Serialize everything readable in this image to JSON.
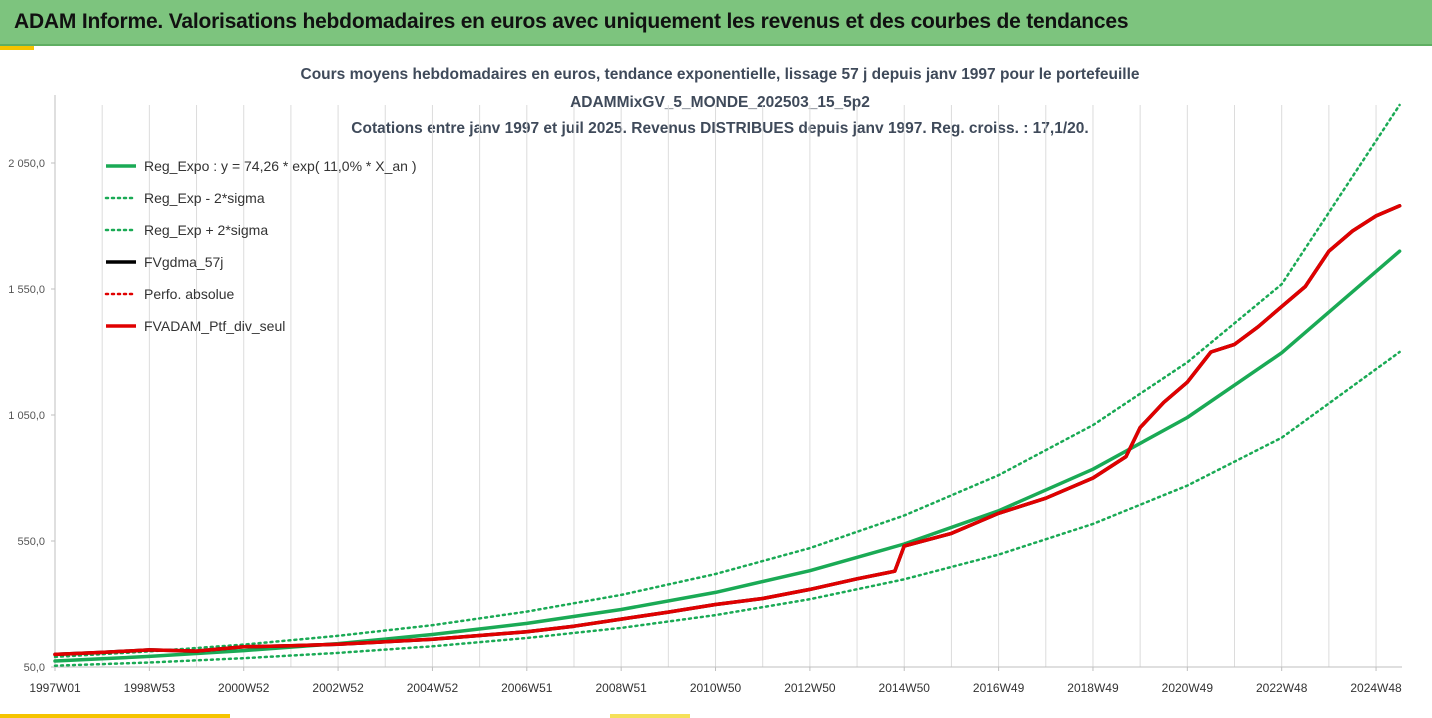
{
  "header": {
    "title": "ADAM Informe. Valorisations hebdomadaires en euros avec uniquement les revenus et des courbes de tendances"
  },
  "colors": {
    "banner": "#7dc47e",
    "accent": "#f5c400",
    "trend": "#1aaa55",
    "fv_black": "#000000",
    "perf_red": "#e00000"
  },
  "chart_data": {
    "type": "line",
    "title": [
      "Cours moyens hebdomadaires  en euros, tendance exponentielle, lissage 57 j depuis janv 1997 pour le portefeuille",
      "ADAMMixGV_5_MONDE_202503_15_5p2",
      "Cotations  entre janv 1997 et juil 2025. Revenus DISTRIBUES depuis janv 1997. Reg. croiss. : 17,1/20."
    ],
    "xlabel": "",
    "ylabel": "",
    "x_ticks": [
      "1997W01",
      "1998W53",
      "2000W52",
      "2002W52",
      "2004W52",
      "2006W51",
      "2008W51",
      "2010W50",
      "2012W50",
      "2014W50",
      "2016W49",
      "2018W49",
      "2020W49",
      "2022W48",
      "2024W48"
    ],
    "x_tick_years": [
      1997.0,
      1999.0,
      2001.0,
      2003.0,
      2005.0,
      2007.0,
      2009.0,
      2011.0,
      2013.0,
      2015.0,
      2017.0,
      2019.0,
      2021.0,
      2023.0,
      2025.0
    ],
    "x_range": [
      1997.0,
      2025.55
    ],
    "y_ticks": [
      "50,0",
      "550,0",
      "1 050,0",
      "1 550,0",
      "2 050,0"
    ],
    "y_tick_values": [
      50,
      550,
      1050,
      1550,
      2050
    ],
    "ylim": [
      50,
      2050
    ],
    "grid": "vertical",
    "legend_position": "top-left",
    "legend": [
      "Reg_Expo : y = 74,26 * exp( 11,0% *  X_an )",
      "Reg_Exp - 2*sigma",
      "Reg_Exp + 2*sigma",
      "FVgdma_57j",
      "Perfo. absolue",
      "FVADAM_Ptf_div_seul"
    ],
    "series": [
      {
        "name": "Reg_Expo : y = 74,26 * exp( 11,0% *  X_an )",
        "style": "solid",
        "color": "#1aaa55",
        "x": [
          1997.0,
          1999.0,
          2001.0,
          2003.0,
          2005.0,
          2007.0,
          2009.0,
          2011.0,
          2013.0,
          2015.0,
          2017.0,
          2019.0,
          2021.0,
          2023.0,
          2025.5
        ],
        "values": [
          74,
          92,
          115,
          143,
          179,
          223,
          278,
          346,
          432,
          538,
          670,
          835,
          1040,
          1297,
          1700
        ]
      },
      {
        "name": "Reg_Exp - 2*sigma",
        "style": "dotted",
        "color": "#1aaa55",
        "x": [
          1997.0,
          1999.0,
          2001.0,
          2003.0,
          2005.0,
          2007.0,
          2009.0,
          2011.0,
          2013.0,
          2015.0,
          2017.0,
          2019.0,
          2021.0,
          2023.0,
          2025.5
        ],
        "values": [
          55,
          68,
          85,
          106,
          132,
          165,
          205,
          256,
          319,
          398,
          496,
          618,
          770,
          960,
          1300
        ]
      },
      {
        "name": "Reg_Exp + 2*sigma",
        "style": "dotted",
        "color": "#1aaa55",
        "x": [
          1997.0,
          1999.0,
          2001.0,
          2003.0,
          2005.0,
          2007.0,
          2009.0,
          2011.0,
          2013.0,
          2015.0,
          2017.0,
          2019.0,
          2021.0,
          2023.0,
          2025.5
        ],
        "values": [
          90,
          112,
          139,
          174,
          216,
          270,
          336,
          419,
          522,
          651,
          811,
          1010,
          1259,
          1569,
          2280
        ]
      },
      {
        "name": "FVgdma_57j",
        "style": "solid",
        "color": "#000000",
        "x": [
          1997.0,
          1998.0,
          1999.0,
          2000.0,
          2001.0,
          2002.0,
          2003.0,
          2004.0,
          2005.0,
          2006.0,
          2007.0,
          2008.0,
          2009.0,
          2010.0,
          2011.0,
          2012.0,
          2013.0,
          2014.0,
          2014.8,
          2015.0,
          2016.0,
          2017.0,
          2018.0,
          2019.0,
          2019.7,
          2020.0,
          2020.5,
          2021.0,
          2021.5,
          2022.0,
          2022.5,
          2023.0,
          2023.5,
          2024.0,
          2024.5,
          2025.0,
          2025.5
        ],
        "values": [
          100,
          108,
          118,
          113,
          130,
          134,
          140,
          150,
          160,
          175,
          190,
          212,
          240,
          268,
          298,
          322,
          358,
          400,
          430,
          530,
          580,
          660,
          720,
          800,
          885,
          1000,
          1100,
          1180,
          1300,
          1330,
          1400,
          1480,
          1560,
          1700,
          1780,
          1840,
          1880
        ]
      },
      {
        "name": "Perfo. absolue",
        "style": "dotted",
        "color": "#e00000",
        "x": [
          1997.0,
          1998.0,
          1999.0,
          2000.0,
          2001.0,
          2002.0,
          2003.0,
          2004.0,
          2005.0,
          2006.0,
          2007.0,
          2008.0,
          2009.0,
          2010.0,
          2011.0,
          2012.0,
          2013.0,
          2014.0,
          2014.8,
          2015.0,
          2016.0,
          2017.0,
          2018.0,
          2019.0,
          2019.7,
          2020.0,
          2020.5,
          2021.0,
          2021.5,
          2022.0,
          2022.5,
          2023.0,
          2023.5,
          2024.0,
          2024.5,
          2025.0,
          2025.5
        ],
        "values": [
          100,
          108,
          118,
          113,
          130,
          134,
          140,
          150,
          160,
          175,
          190,
          212,
          240,
          268,
          298,
          322,
          358,
          400,
          430,
          530,
          580,
          660,
          720,
          800,
          885,
          1000,
          1100,
          1180,
          1300,
          1330,
          1400,
          1480,
          1560,
          1700,
          1780,
          1840,
          1880
        ]
      },
      {
        "name": "FVADAM_Ptf_div_seul",
        "style": "solid",
        "color": "#e00000",
        "x": [
          1997.0,
          1998.0,
          1999.0,
          2000.0,
          2001.0,
          2002.0,
          2003.0,
          2004.0,
          2005.0,
          2006.0,
          2007.0,
          2008.0,
          2009.0,
          2010.0,
          2011.0,
          2012.0,
          2013.0,
          2014.0,
          2014.8,
          2015.0,
          2016.0,
          2017.0,
          2018.0,
          2019.0,
          2019.7,
          2020.0,
          2020.5,
          2021.0,
          2021.5,
          2022.0,
          2022.5,
          2023.0,
          2023.5,
          2024.0,
          2024.5,
          2025.0,
          2025.5
        ],
        "values": [
          100,
          108,
          118,
          113,
          130,
          134,
          140,
          150,
          160,
          175,
          190,
          212,
          240,
          268,
          298,
          322,
          358,
          400,
          430,
          530,
          580,
          660,
          720,
          800,
          885,
          1000,
          1100,
          1180,
          1300,
          1330,
          1400,
          1480,
          1560,
          1700,
          1780,
          1840,
          1880
        ]
      }
    ]
  }
}
